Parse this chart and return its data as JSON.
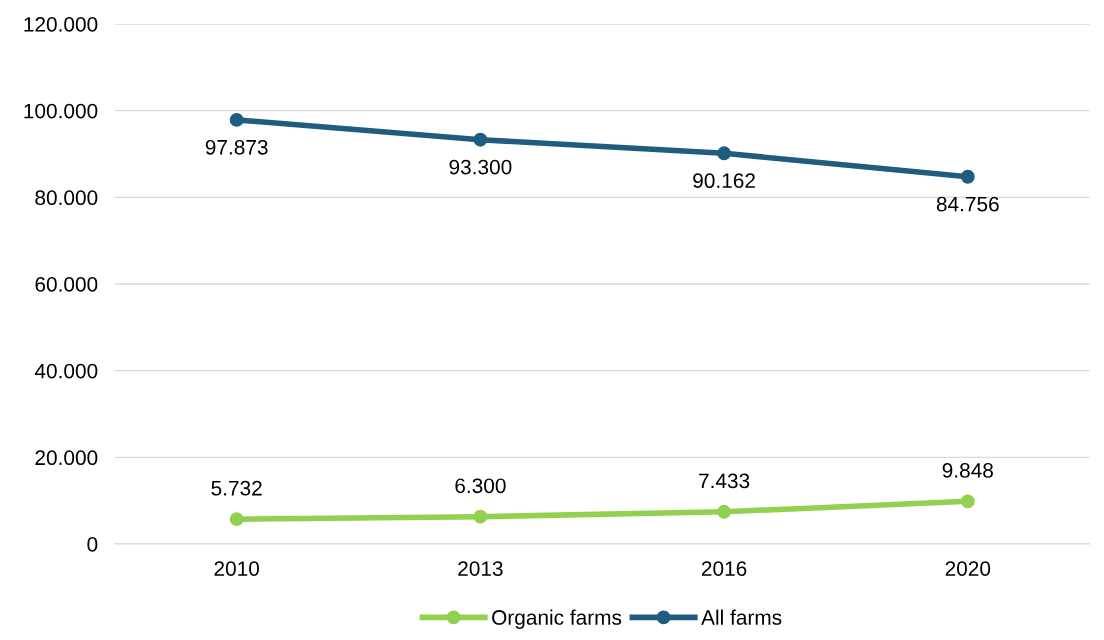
{
  "chart_data": {
    "type": "line",
    "categories": [
      "2010",
      "2013",
      "2016",
      "2020"
    ],
    "series": [
      {
        "name": "Organic farms",
        "color": "#92d050",
        "values": [
          5732,
          6300,
          7433,
          9848
        ],
        "value_labels": [
          "5.732",
          "6.300",
          "7.433",
          "9.848"
        ]
      },
      {
        "name": "All farms",
        "color": "#1f5c7f",
        "values": [
          97873,
          93300,
          90162,
          84756
        ],
        "value_labels": [
          "97.873",
          "93.300",
          "90.162",
          "84.756"
        ]
      }
    ],
    "ylim": [
      0,
      120000
    ],
    "yticks": [
      {
        "value": 0,
        "label": "0"
      },
      {
        "value": 20000,
        "label": "20.000"
      },
      {
        "value": 40000,
        "label": "40.000"
      },
      {
        "value": 60000,
        "label": "60.000"
      },
      {
        "value": 80000,
        "label": "80.000"
      },
      {
        "value": 100000,
        "label": "100.000"
      },
      {
        "value": 120000,
        "label": "120.000"
      }
    ],
    "grid": "y",
    "legend": "bottom",
    "marker": "circle",
    "line_style": "solid"
  }
}
